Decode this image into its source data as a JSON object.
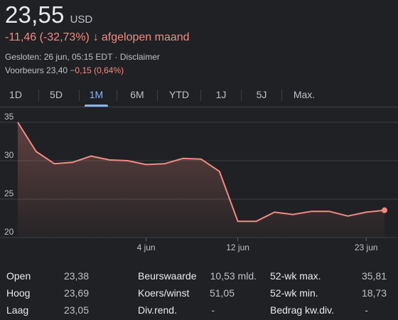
{
  "quote": {
    "price": "23,55",
    "currency": "USD",
    "change": "-11,46 (-32,73%)",
    "change_arrow": "↓",
    "change_period": "afgelopen maand",
    "closed_text": "Gesloten: 26 jun, 05:15 EDT · Disclaimer",
    "premarket_label": "Voorbeurs 23,40",
    "premarket_change": "−0,15 (0,64%)"
  },
  "colors": {
    "background": "#202124",
    "negative": "#f28b82",
    "accent": "#8ab4f8",
    "text": "#e8eaed",
    "muted": "#bdc1c6"
  },
  "tabs": [
    {
      "label": "1D",
      "active": false
    },
    {
      "label": "5D",
      "active": false
    },
    {
      "label": "1M",
      "active": true
    },
    {
      "label": "6M",
      "active": false
    },
    {
      "label": "YTD",
      "active": false
    },
    {
      "label": "1J",
      "active": false
    },
    {
      "label": "5J",
      "active": false
    },
    {
      "label": "Max.",
      "active": false
    }
  ],
  "chart_data": {
    "type": "area",
    "title": "",
    "xlabel": "",
    "ylabel": "",
    "ylim": [
      20,
      35
    ],
    "y_ticks": [
      "35",
      "30",
      "25",
      "20"
    ],
    "x_ticks": [
      {
        "label": "4 jun",
        "index": 7
      },
      {
        "label": "12 jun",
        "index": 12
      },
      {
        "label": "23 jun",
        "index": 19
      }
    ],
    "grid": true,
    "line_color": "#f28b82",
    "x_count": 21,
    "values": [
      35.0,
      31.2,
      29.6,
      29.8,
      30.6,
      30.1,
      30.0,
      29.5,
      29.6,
      30.3,
      30.2,
      28.6,
      22.1,
      22.1,
      23.3,
      23.0,
      23.4,
      23.4,
      22.8,
      23.3,
      23.55
    ]
  },
  "stats": {
    "col1": [
      {
        "label": "Open",
        "value": "23,38"
      },
      {
        "label": "Hoog",
        "value": "23,69"
      },
      {
        "label": "Laag",
        "value": "23,05"
      }
    ],
    "col2": [
      {
        "label": "Beurswaarde",
        "value": "10,53 mld."
      },
      {
        "label": "Koers/winst",
        "value": "51,05"
      },
      {
        "label": "Div.rend.",
        "value": "-"
      }
    ],
    "col3": [
      {
        "label": "52-wk max.",
        "value": "35,81"
      },
      {
        "label": "52-wk min.",
        "value": "18,73"
      },
      {
        "label": "Bedrag kw.div.",
        "value": "-"
      }
    ]
  }
}
